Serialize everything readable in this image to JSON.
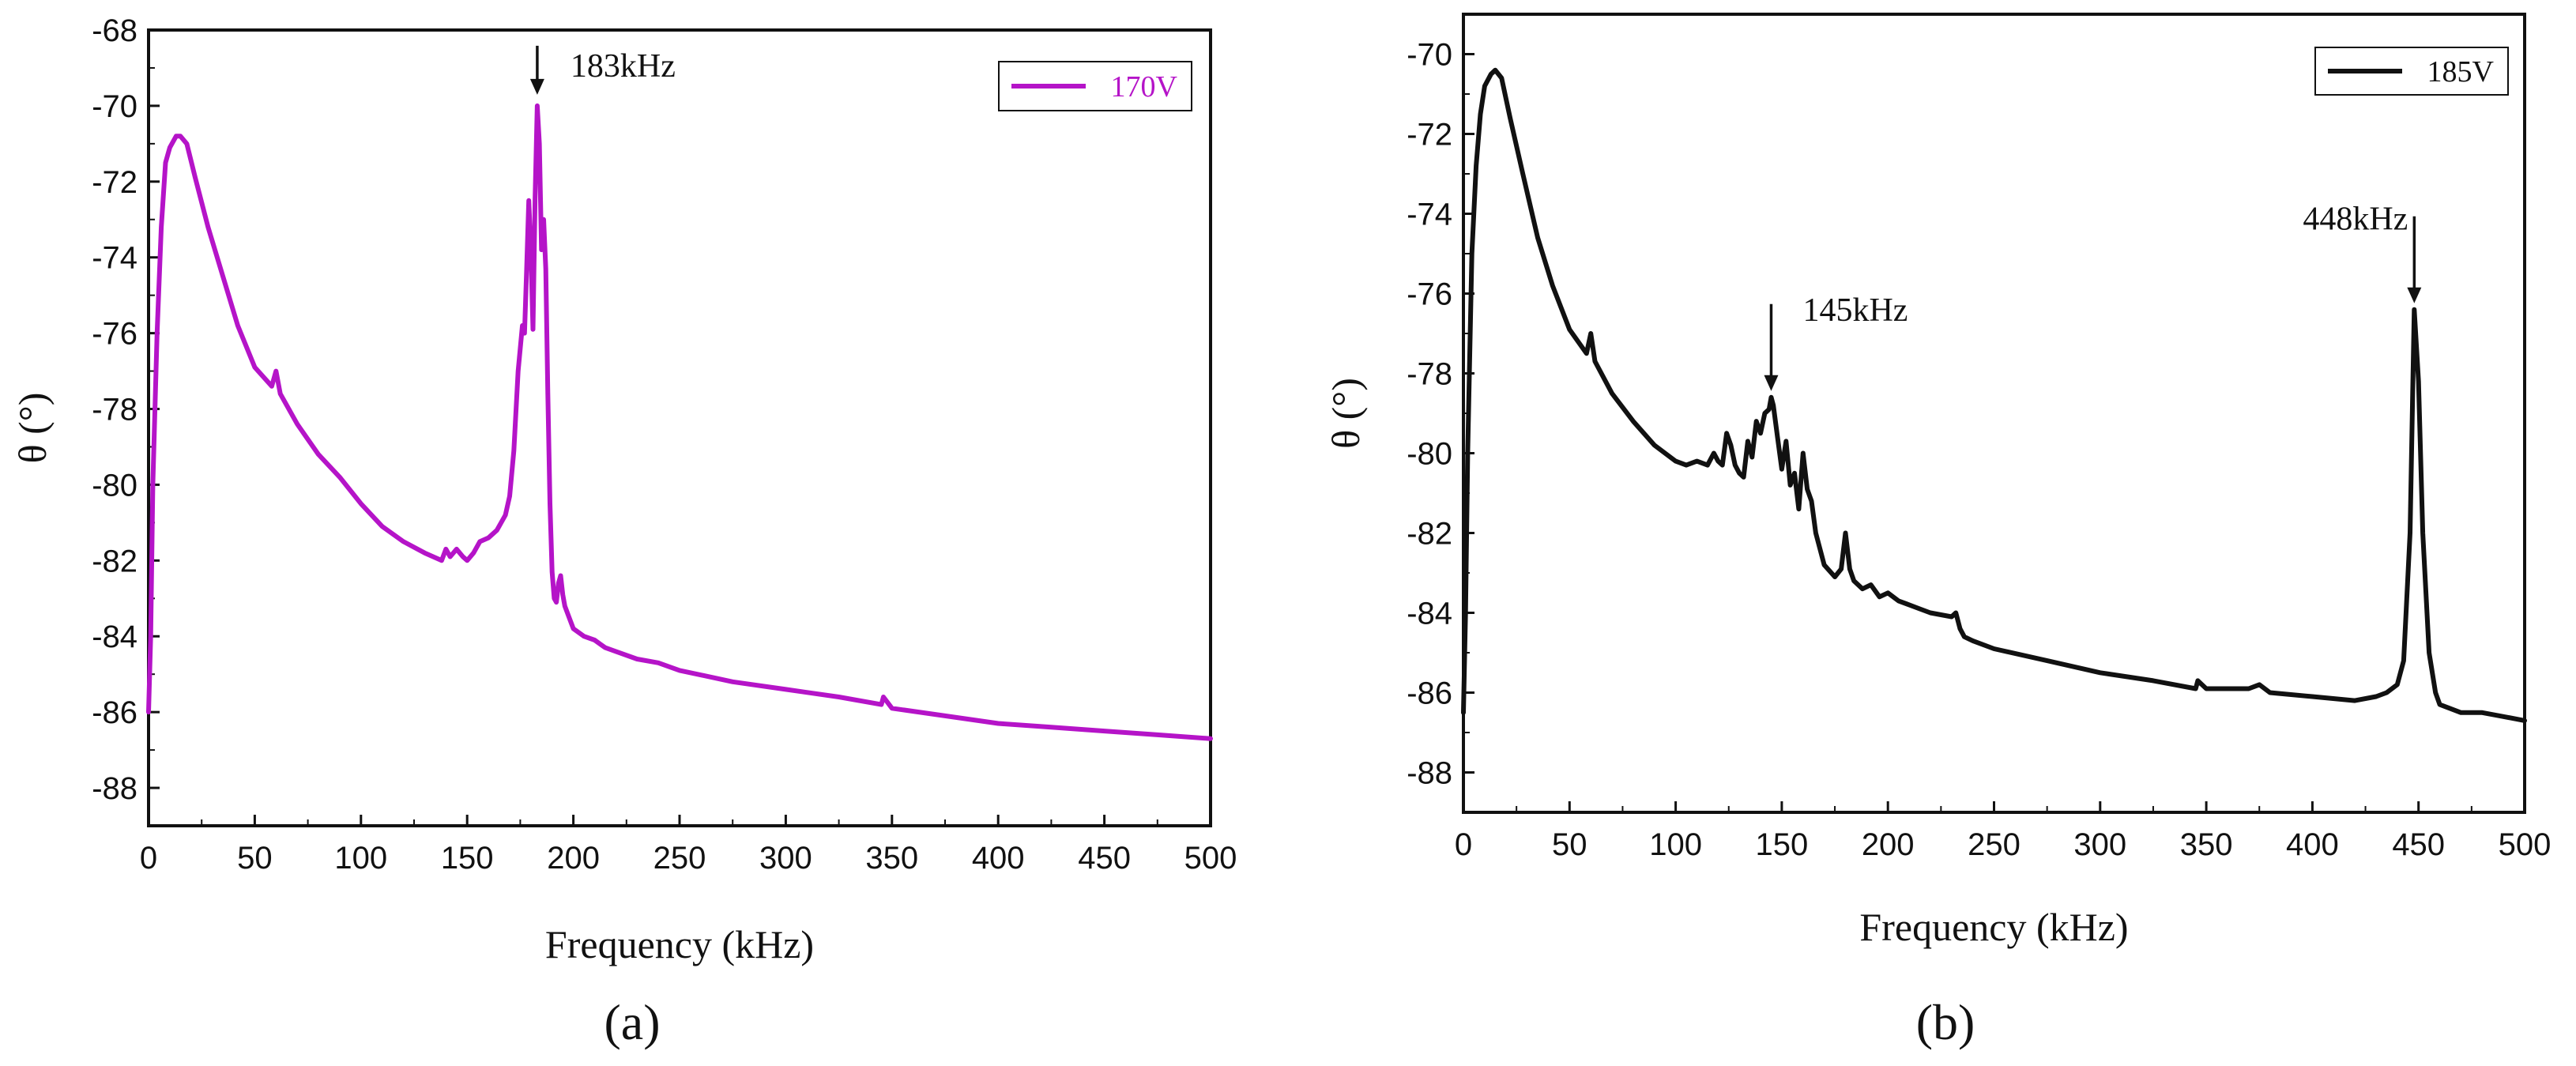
{
  "chart_data": [
    {
      "type": "line",
      "panel": "(a)",
      "xlabel": "Frequency (kHz)",
      "ylabel": "θ (°)",
      "xlim": [
        0,
        500
      ],
      "ylim": [
        -89,
        -68
      ],
      "xticks": [
        0,
        50,
        100,
        150,
        200,
        250,
        300,
        350,
        400,
        450,
        500
      ],
      "yticks": [
        -88,
        -86,
        -84,
        -82,
        -80,
        -78,
        -76,
        -74,
        -72,
        -70,
        -68
      ],
      "grid": false,
      "legend_position": "top-right",
      "color": "#b514c8",
      "series": [
        {
          "name": "170V",
          "x": [
            0,
            1,
            2,
            4,
            6,
            8,
            10,
            13,
            15,
            18,
            22,
            28,
            35,
            42,
            50,
            58,
            60,
            62,
            70,
            80,
            90,
            100,
            110,
            120,
            130,
            138,
            140,
            142,
            145,
            148,
            150,
            153,
            156,
            160,
            164,
            168,
            170,
            172,
            174,
            176,
            177,
            178,
            179,
            180,
            181,
            182,
            183,
            184,
            185,
            186,
            187,
            188,
            189,
            190,
            191,
            192,
            193,
            194,
            195,
            196,
            198,
            200,
            205,
            210,
            215,
            220,
            230,
            240,
            250,
            275,
            300,
            325,
            345,
            346,
            350,
            375,
            400,
            425,
            450,
            475,
            500
          ],
          "values": [
            -86.0,
            -84.0,
            -80.0,
            -76.0,
            -73.2,
            -71.5,
            -71.1,
            -70.8,
            -70.8,
            -71.0,
            -71.9,
            -73.2,
            -74.5,
            -75.8,
            -76.9,
            -77.4,
            -77.0,
            -77.6,
            -78.4,
            -79.2,
            -79.8,
            -80.5,
            -81.1,
            -81.5,
            -81.8,
            -82.0,
            -81.7,
            -81.9,
            -81.7,
            -81.9,
            -82.0,
            -81.8,
            -81.5,
            -81.4,
            -81.2,
            -80.8,
            -80.3,
            -79.1,
            -77.0,
            -75.8,
            -76.0,
            -74.3,
            -72.5,
            -73.8,
            -75.9,
            -72.4,
            -70.0,
            -71.0,
            -73.8,
            -73.0,
            -74.3,
            -77.6,
            -80.5,
            -82.3,
            -83.0,
            -83.1,
            -82.6,
            -82.4,
            -82.9,
            -83.2,
            -83.5,
            -83.8,
            -84.0,
            -84.1,
            -84.3,
            -84.4,
            -84.6,
            -84.7,
            -84.9,
            -85.2,
            -85.4,
            -85.6,
            -85.8,
            -85.6,
            -85.9,
            -86.1,
            -86.3,
            -86.4,
            -86.5,
            -86.6,
            -86.7
          ]
        }
      ],
      "annotations": [
        {
          "text": "183kHz",
          "x": 183,
          "y": -70.0
        }
      ]
    },
    {
      "type": "line",
      "panel": "(b)",
      "xlabel": "Frequency (kHz)",
      "ylabel": "θ (°)",
      "xlim": [
        0,
        500
      ],
      "ylim": [
        -89,
        -69
      ],
      "xticks": [
        0,
        50,
        100,
        150,
        200,
        250,
        300,
        350,
        400,
        450,
        500
      ],
      "yticks": [
        -88,
        -86,
        -84,
        -82,
        -80,
        -78,
        -76,
        -74,
        -72,
        -70
      ],
      "grid": false,
      "legend_position": "top-right",
      "color": "#111111",
      "series": [
        {
          "name": "185V",
          "x": [
            0,
            1,
            2,
            4,
            6,
            8,
            10,
            13,
            15,
            18,
            22,
            28,
            35,
            42,
            50,
            58,
            60,
            62,
            70,
            80,
            90,
            100,
            105,
            110,
            115,
            118,
            120,
            122,
            124,
            126,
            128,
            130,
            132,
            134,
            136,
            138,
            140,
            142,
            144,
            145,
            146,
            148,
            150,
            152,
            154,
            156,
            158,
            160,
            162,
            164,
            166,
            170,
            175,
            178,
            180,
            182,
            184,
            188,
            192,
            196,
            200,
            205,
            210,
            215,
            220,
            230,
            232,
            234,
            236,
            240,
            250,
            275,
            300,
            325,
            345,
            346,
            350,
            370,
            375,
            380,
            400,
            420,
            430,
            435,
            440,
            443,
            446,
            448,
            450,
            452,
            455,
            458,
            460,
            465,
            470,
            480,
            490,
            500
          ],
          "values": [
            -86.5,
            -84.0,
            -80.0,
            -75.0,
            -72.8,
            -71.5,
            -70.8,
            -70.5,
            -70.4,
            -70.6,
            -71.6,
            -73.0,
            -74.6,
            -75.8,
            -76.9,
            -77.5,
            -77.0,
            -77.7,
            -78.5,
            -79.2,
            -79.8,
            -80.2,
            -80.3,
            -80.2,
            -80.3,
            -80.0,
            -80.2,
            -80.3,
            -79.5,
            -79.8,
            -80.3,
            -80.5,
            -80.6,
            -79.7,
            -80.1,
            -79.2,
            -79.5,
            -79.0,
            -78.9,
            -78.6,
            -78.8,
            -79.6,
            -80.4,
            -79.7,
            -80.8,
            -80.5,
            -81.4,
            -80.0,
            -80.9,
            -81.2,
            -82.0,
            -82.8,
            -83.1,
            -82.9,
            -82.0,
            -82.9,
            -83.2,
            -83.4,
            -83.3,
            -83.6,
            -83.5,
            -83.7,
            -83.8,
            -83.9,
            -84.0,
            -84.1,
            -84.0,
            -84.4,
            -84.6,
            -84.7,
            -84.9,
            -85.2,
            -85.5,
            -85.7,
            -85.9,
            -85.7,
            -85.9,
            -85.9,
            -85.8,
            -86.0,
            -86.1,
            -86.2,
            -86.1,
            -86.0,
            -85.8,
            -85.2,
            -82.0,
            -76.4,
            -78.2,
            -82.0,
            -85.0,
            -86.0,
            -86.3,
            -86.4,
            -86.5,
            -86.5,
            -86.6,
            -86.7
          ]
        }
      ],
      "annotations": [
        {
          "text": "145kHz",
          "x": 145,
          "y": -78.6
        },
        {
          "text": "448kHz",
          "x": 448,
          "y": -76.4
        }
      ]
    }
  ]
}
